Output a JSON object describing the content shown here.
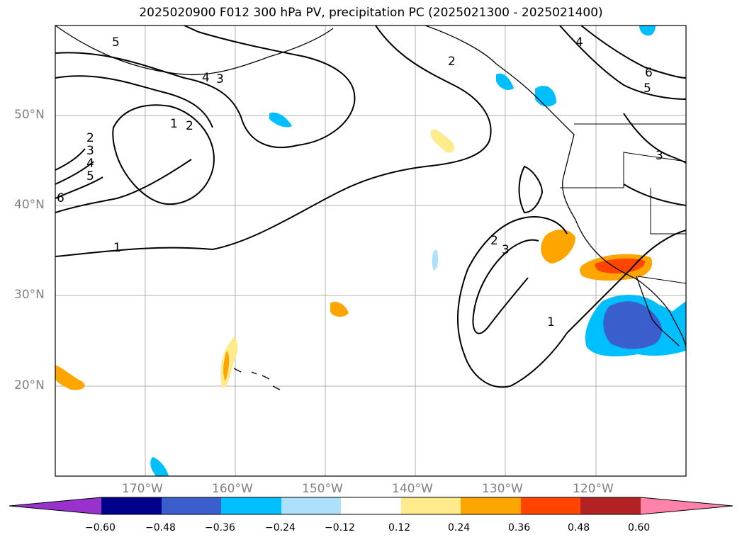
{
  "title": "2025020900 F012 300 hPa PV, precipitation PC (2025021300 - 2025021400)",
  "lat_labels": [
    "50°N",
    "40°N",
    "30°N",
    "20°N"
  ],
  "lon_labels": [
    "170°W",
    "160°W",
    "150°W",
    "140°W",
    "130°W",
    "120°W"
  ],
  "colorbar": {
    "tick_labels": [
      "−0.60",
      "−0.48",
      "−0.36",
      "−0.24",
      "−0.12",
      "0.12",
      "0.24",
      "0.36",
      "0.48",
      "0.60"
    ],
    "colors": [
      "#9932CC",
      "#00008B",
      "#3A5FCD",
      "#00BFFF",
      "#ADE0FA",
      "#FFFFFF",
      "#FFEA8C",
      "#FFA500",
      "#FF4500",
      "#B22222",
      "#FF82AB"
    ]
  },
  "contour_labels": [
    "1",
    "2",
    "3",
    "4",
    "5",
    "6"
  ],
  "colors": {
    "grid": "#b0b0b0",
    "tick_text": "#808080",
    "contour": "#000000"
  }
}
